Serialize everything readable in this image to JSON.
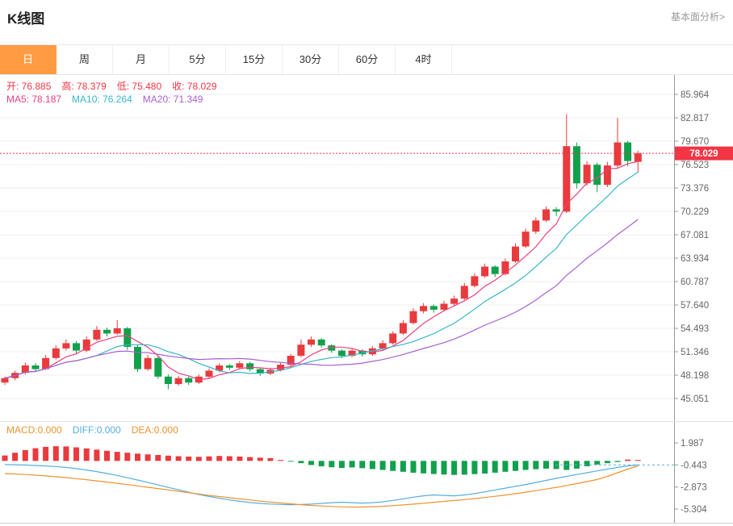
{
  "header": {
    "title": "K线图",
    "link": "基本面分析>"
  },
  "tabs": {
    "items": [
      {
        "label": "日",
        "active": true
      },
      {
        "label": "周",
        "active": false
      },
      {
        "label": "月",
        "active": false
      },
      {
        "label": "5分",
        "active": false
      },
      {
        "label": "15分",
        "active": false
      },
      {
        "label": "30分",
        "active": false
      },
      {
        "label": "60分",
        "active": false
      },
      {
        "label": "4时",
        "active": false
      }
    ]
  },
  "legend": {
    "ohlc": [
      {
        "name": "open-value",
        "label": "开:",
        "value": "76.885",
        "color": "#f23545"
      },
      {
        "name": "high-value",
        "label": "高:",
        "value": "78.379",
        "color": "#f23545"
      },
      {
        "name": "low-value",
        "label": "低:",
        "value": "75.480",
        "color": "#f23545"
      },
      {
        "name": "close-value",
        "label": "收:",
        "value": "78.029",
        "color": "#f23545"
      }
    ],
    "ma": [
      {
        "name": "ma5-value",
        "label": "MA5:",
        "value": "78.187",
        "color": "#e9417f"
      },
      {
        "name": "ma10-value",
        "label": "MA10:",
        "value": "76.264",
        "color": "#36b6c8"
      },
      {
        "name": "ma20-value",
        "label": "MA20:",
        "value": "71.349",
        "color": "#a95fd0"
      }
    ],
    "macd": [
      {
        "name": "macd-value",
        "label": "MACD:",
        "value": "0.000",
        "color": "#f0922f"
      },
      {
        "name": "diff-value",
        "label": "DIFF:",
        "value": "0.000",
        "color": "#55aee0"
      },
      {
        "name": "dea-value",
        "label": "DEA:",
        "value": "0.000",
        "color": "#f0922f"
      }
    ]
  },
  "price_tag": "78.029",
  "colors": {
    "accent": "#ff9b43",
    "up": "#e93a3d",
    "down": "#12a04c",
    "ma5": "#e9417f",
    "ma10": "#36b6c8",
    "ma20": "#a95fd0",
    "diff": "#55aee0",
    "dea": "#f0922f",
    "price_line": "#f23545",
    "grid": "#efefef",
    "axis": "#999999"
  },
  "chart_data": {
    "type": "candlestick",
    "title": "K线图",
    "timeframe": "日",
    "convention": "chinese: red = up, green = down",
    "y_ticks": [
      85.964,
      82.817,
      79.67,
      76.523,
      73.376,
      70.229,
      67.081,
      63.934,
      60.787,
      57.64,
      54.493,
      51.346,
      48.198,
      45.051
    ],
    "last": {
      "open": 76.885,
      "high": 78.379,
      "low": 75.48,
      "close": 78.029
    },
    "ma": {
      "ma5": 78.187,
      "ma10": 76.264,
      "ma20": 71.349
    },
    "candles": [
      [
        47.2,
        48.0,
        46.9,
        47.8
      ],
      [
        47.8,
        48.8,
        47.5,
        48.5
      ],
      [
        48.5,
        49.9,
        48.3,
        49.5
      ],
      [
        49.5,
        49.8,
        48.6,
        49.0
      ],
      [
        49.0,
        50.9,
        48.9,
        50.5
      ],
      [
        50.5,
        52.2,
        50.3,
        51.8
      ],
      [
        51.8,
        53.0,
        51.5,
        52.5
      ],
      [
        52.5,
        52.8,
        51.1,
        51.5
      ],
      [
        51.5,
        53.4,
        51.3,
        53.0
      ],
      [
        53.0,
        54.8,
        52.8,
        54.3
      ],
      [
        54.3,
        54.6,
        53.4,
        53.8
      ],
      [
        53.8,
        55.6,
        53.6,
        54.5
      ],
      [
        54.5,
        54.7,
        51.6,
        52.0
      ],
      [
        52.0,
        52.3,
        48.6,
        49.0
      ],
      [
        49.0,
        50.9,
        48.8,
        50.5
      ],
      [
        50.5,
        50.7,
        47.7,
        48.0
      ],
      [
        48.0,
        48.3,
        46.3,
        47.0
      ],
      [
        47.0,
        48.1,
        46.8,
        47.8
      ],
      [
        47.8,
        48.0,
        46.9,
        47.2
      ],
      [
        47.2,
        48.3,
        47.0,
        48.0
      ],
      [
        48.0,
        49.1,
        47.8,
        48.8
      ],
      [
        48.8,
        49.8,
        48.6,
        49.5
      ],
      [
        49.5,
        49.7,
        48.9,
        49.2
      ],
      [
        49.2,
        50.1,
        49.0,
        49.8
      ],
      [
        49.8,
        50.0,
        48.7,
        49.0
      ],
      [
        49.0,
        49.2,
        48.1,
        48.4
      ],
      [
        48.4,
        49.2,
        48.2,
        48.9
      ],
      [
        48.9,
        49.9,
        48.7,
        49.6
      ],
      [
        49.6,
        51.1,
        49.4,
        50.8
      ],
      [
        50.8,
        53.0,
        50.6,
        52.3
      ],
      [
        52.3,
        53.4,
        52.0,
        53.0
      ],
      [
        53.0,
        53.2,
        51.9,
        52.2
      ],
      [
        52.2,
        52.4,
        51.2,
        51.5
      ],
      [
        51.5,
        51.7,
        50.5,
        50.8
      ],
      [
        50.8,
        51.8,
        50.6,
        51.5
      ],
      [
        51.5,
        51.7,
        50.7,
        51.0
      ],
      [
        51.0,
        52.1,
        50.8,
        51.8
      ],
      [
        51.8,
        52.9,
        51.6,
        52.5
      ],
      [
        52.5,
        54.1,
        52.3,
        53.8
      ],
      [
        53.8,
        55.6,
        53.6,
        55.2
      ],
      [
        55.2,
        57.2,
        55.0,
        56.8
      ],
      [
        56.8,
        57.9,
        56.5,
        57.5
      ],
      [
        57.5,
        57.7,
        56.6,
        57.0
      ],
      [
        57.0,
        58.2,
        56.8,
        57.8
      ],
      [
        57.8,
        58.9,
        57.5,
        58.5
      ],
      [
        58.5,
        60.6,
        58.3,
        60.2
      ],
      [
        60.2,
        61.9,
        60.0,
        61.5
      ],
      [
        61.5,
        63.2,
        61.3,
        62.8
      ],
      [
        62.8,
        63.0,
        61.4,
        61.8
      ],
      [
        61.8,
        63.9,
        61.6,
        63.5
      ],
      [
        63.5,
        65.9,
        63.3,
        65.5
      ],
      [
        65.5,
        67.9,
        65.3,
        67.5
      ],
      [
        67.5,
        69.4,
        67.2,
        69.0
      ],
      [
        69.0,
        70.9,
        68.8,
        70.5
      ],
      [
        70.5,
        70.8,
        69.6,
        70.2
      ],
      [
        70.2,
        83.3,
        70.0,
        79.0
      ],
      [
        79.0,
        79.5,
        73.3,
        74.0
      ],
      [
        74.0,
        77.0,
        73.7,
        76.5
      ],
      [
        76.5,
        76.8,
        72.8,
        73.8
      ],
      [
        73.8,
        76.9,
        73.5,
        76.4
      ],
      [
        76.4,
        82.8,
        76.1,
        79.5
      ],
      [
        79.5,
        79.7,
        76.3,
        77.0
      ],
      [
        76.885,
        78.379,
        75.48,
        78.029
      ]
    ],
    "macd": {
      "ticks": [
        1.987,
        -0.443,
        -2.873,
        -5.304
      ],
      "macd": 0.0,
      "diff": 0.0,
      "dea": 0.0,
      "hist": [
        0.6,
        0.9,
        1.2,
        1.4,
        1.55,
        1.62,
        1.6,
        1.5,
        1.38,
        1.25,
        1.12,
        1.0,
        0.9,
        0.8,
        0.72,
        0.65,
        0.58,
        0.52,
        0.48,
        0.45,
        0.5,
        0.55,
        0.52,
        0.48,
        0.42,
        0.36,
        0.3,
        0.1,
        -0.08,
        -0.25,
        -0.45,
        -0.6,
        -0.7,
        -0.78,
        -0.72,
        -0.8,
        -0.9,
        -1.0,
        -1.1,
        -1.2,
        -1.3,
        -1.38,
        -1.45,
        -1.5,
        -1.55,
        -1.52,
        -1.46,
        -1.4,
        -1.3,
        -1.2,
        -1.1,
        -1.0,
        -0.92,
        -0.85,
        -0.9,
        -1.0,
        -0.85,
        -0.6,
        -0.4,
        -0.25,
        -0.12,
        0.15,
        0.1
      ],
      "diff_line": [
        -0.4,
        -0.42,
        -0.45,
        -0.5,
        -0.55,
        -0.62,
        -0.72,
        -0.85,
        -1.0,
        -1.18,
        -1.38,
        -1.6,
        -1.85,
        -2.1,
        -2.38,
        -2.65,
        -2.92,
        -3.18,
        -3.45,
        -3.7,
        -3.92,
        -4.12,
        -4.3,
        -4.45,
        -4.58,
        -4.68,
        -4.75,
        -4.8,
        -4.82,
        -4.8,
        -4.75,
        -4.68,
        -4.6,
        -4.55,
        -4.6,
        -4.65,
        -4.6,
        -4.5,
        -4.35,
        -4.18,
        -4.0,
        -3.85,
        -3.75,
        -3.8,
        -3.85,
        -3.75,
        -3.6,
        -3.4,
        -3.2,
        -3.0,
        -2.8,
        -2.6,
        -2.38,
        -2.15,
        -1.92,
        -1.7,
        -1.5,
        -1.3,
        -1.1,
        -0.9,
        -0.72,
        -0.55,
        -0.44
      ],
      "dea_line": [
        -1.4,
        -1.44,
        -1.5,
        -1.57,
        -1.65,
        -1.74,
        -1.84,
        -1.95,
        -2.07,
        -2.2,
        -2.33,
        -2.47,
        -2.61,
        -2.75,
        -2.9,
        -3.05,
        -3.2,
        -3.35,
        -3.5,
        -3.65,
        -3.8,
        -3.93,
        -4.06,
        -4.18,
        -4.3,
        -4.42,
        -4.53,
        -4.63,
        -4.73,
        -4.82,
        -4.9,
        -4.97,
        -5.02,
        -5.06,
        -5.08,
        -5.08,
        -5.05,
        -5.0,
        -4.93,
        -4.85,
        -4.76,
        -4.66,
        -4.56,
        -4.46,
        -4.36,
        -4.26,
        -4.15,
        -4.03,
        -3.9,
        -3.76,
        -3.61,
        -3.45,
        -3.28,
        -3.1,
        -2.91,
        -2.71,
        -2.5,
        -2.28,
        -2.05,
        -1.7,
        -1.3,
        -0.9,
        -0.55
      ]
    }
  }
}
